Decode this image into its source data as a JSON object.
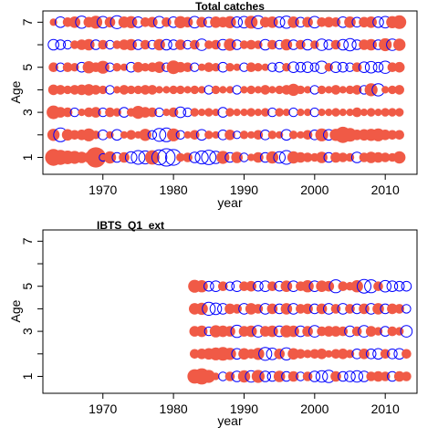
{
  "colors": {
    "positive": "#F05A46",
    "negative": "#0000FF",
    "axis": "#000000",
    "background": "#FFFFFF"
  },
  "chart_data": [
    {
      "type": "bubble",
      "title": "Total catches",
      "xlabel": "year",
      "ylabel": "Age",
      "xlim": [
        1961.5,
        2014.5
      ],
      "ylim": [
        0.25,
        7.5
      ],
      "xticks": [
        1970,
        1980,
        1990,
        2000,
        2010
      ],
      "yticks": [
        1,
        3,
        5,
        7
      ],
      "yminor_ticks": [
        2,
        4,
        6
      ],
      "years": [
        1963,
        2012
      ],
      "ages": [
        1,
        2,
        3,
        4,
        5,
        6,
        7
      ],
      "encoding": "filled red = positive residual, open blue = negative residual; circle size proportional to magnitude",
      "residuals": {
        "1": [
          1.5,
          1.2,
          1.0,
          0.9,
          0.7,
          0.6,
          2.2,
          -0.3,
          0.8,
          -0.5,
          0.6,
          -0.7,
          -1.0,
          -0.9,
          1.1,
          -1.2,
          -1.6,
          -1.3,
          0.4,
          0.5,
          -0.6,
          -0.9,
          -1.1,
          -0.8,
          0.9,
          -0.5,
          0.7,
          -0.4,
          0.3,
          0.6,
          -0.5,
          0.8,
          -0.7,
          -1.0,
          0.8,
          0.6,
          0.5,
          0.4,
          0.7,
          -0.5,
          0.6,
          0.5,
          0.4,
          -0.6,
          0.5,
          0.7,
          0.6,
          0.5,
          0.4,
          0.8
        ],
        "2": [
          0.8,
          -1.0,
          0.7,
          0.5,
          0.6,
          0.9,
          0.4,
          -0.5,
          0.3,
          -0.6,
          0.3,
          0.5,
          0.3,
          0.8,
          -0.4,
          -0.9,
          -1.0,
          0.9,
          -0.4,
          0.3,
          0.5,
          -0.6,
          0.4,
          0.3,
          -0.5,
          0.6,
          -0.3,
          0.4,
          0.3,
          0.5,
          -0.5,
          0.4,
          0.3,
          -0.6,
          0.4,
          0.3,
          0.5,
          -0.5,
          0.9,
          -0.6,
          0.8,
          1.4,
          1.0,
          0.6,
          0.7,
          0.8,
          0.9,
          0.6,
          0.5,
          0.5
        ],
        "3": [
          1.0,
          0.6,
          0.5,
          -0.4,
          0.3,
          0.5,
          0.6,
          -0.4,
          0.5,
          0.4,
          -0.5,
          0.4,
          0.9,
          0.6,
          0.5,
          -0.4,
          0.3,
          0.5,
          -0.6,
          -0.4,
          0.4,
          0.3,
          0.4,
          0.3,
          -0.5,
          0.4,
          0.3,
          0.3,
          0.4,
          0.3,
          0.4,
          -0.4,
          0.4,
          0.3,
          -0.4,
          0.3,
          0.3,
          -0.4,
          0.3,
          0.3,
          0.4,
          0.3,
          0.3,
          0.5,
          0.3,
          0.4,
          0.3,
          0.4,
          0.4,
          0.4
        ],
        "4": [
          0.6,
          0.5,
          0.4,
          0.5,
          0.6,
          0.7,
          0.5,
          0.4,
          -0.4,
          0.3,
          0.5,
          0.4,
          0.4,
          0.5,
          0.5,
          0.3,
          0.3,
          0.4,
          0.4,
          0.3,
          0.4,
          0.3,
          -0.4,
          0.4,
          0.3,
          0.3,
          -0.4,
          0.3,
          0.4,
          0.3,
          0.5,
          0.3,
          0.4,
          0.5,
          0.8,
          0.4,
          0.3,
          -0.4,
          0.4,
          0.3,
          0.5,
          0.3,
          0.4,
          0.5,
          -0.4,
          0.9,
          -0.8,
          0.3,
          0.4,
          0.5
        ],
        "5": [
          0.5,
          -0.4,
          0.5,
          0.4,
          -0.5,
          0.8,
          0.5,
          0.9,
          -0.4,
          0.4,
          0.3,
          -0.5,
          0.6,
          0.4,
          0.5,
          0.7,
          -0.4,
          1.0,
          0.6,
          0.5,
          -0.4,
          0.3,
          0.5,
          0.4,
          -0.5,
          0.4,
          0.3,
          -0.4,
          0.5,
          0.4,
          0.3,
          -0.4,
          -0.5,
          0.4,
          -0.6,
          -0.5,
          -0.6,
          -0.4,
          -0.8,
          0.4,
          -0.6,
          -0.5,
          -0.4,
          0.5,
          -0.6,
          -0.7,
          -0.5,
          -0.8,
          0.5,
          0.6
        ],
        "6": [
          -0.6,
          -0.5,
          -0.4,
          0.4,
          0.6,
          0.7,
          -0.5,
          0.5,
          -0.4,
          0.4,
          0.6,
          0.7,
          -0.5,
          0.5,
          -0.4,
          0.7,
          -0.6,
          -0.5,
          0.6,
          -0.4,
          0.5,
          -0.7,
          0.4,
          0.5,
          -0.6,
          0.8,
          -0.5,
          0.4,
          0.5,
          0.4,
          -0.6,
          0.5,
          -0.4,
          0.7,
          -0.5,
          0.5,
          -0.6,
          0.4,
          -0.7,
          -0.5,
          0.5,
          -0.6,
          -0.8,
          -0.5,
          0.6,
          0.7,
          -0.5,
          0.9,
          -0.7,
          0.8
        ],
        "7": [
          0.3,
          -0.6,
          0.5,
          0.7,
          -0.8,
          0.6,
          0.9,
          -0.7,
          0.6,
          -0.9,
          0.7,
          0.8,
          -0.6,
          0.5,
          0.6,
          -0.7,
          0.5,
          -0.6,
          0.8,
          0.6,
          -0.7,
          0.6,
          -0.5,
          0.7,
          0.6,
          0.8,
          -0.6,
          -0.7,
          0.9,
          -0.9,
          0.6,
          0.7,
          -0.6,
          -0.8,
          0.7,
          -0.5,
          0.6,
          -0.7,
          0.5,
          0.6,
          0.5,
          -0.6,
          0.7,
          -0.5,
          0.6,
          0.7,
          -0.6,
          -0.7,
          0.8,
          1.0
        ]
      }
    },
    {
      "type": "bubble",
      "title": "IBTS_Q1_ext",
      "xlabel": "year",
      "ylabel": "Age",
      "xlim": [
        1961.5,
        2014.5
      ],
      "ylim": [
        0.25,
        7.5
      ],
      "xticks": [
        1970,
        1980,
        1990,
        2000,
        2010
      ],
      "yticks": [
        1,
        3,
        5,
        7
      ],
      "yminor_ticks": [
        2,
        4,
        6
      ],
      "years": [
        1983,
        2013
      ],
      "ages": [
        1,
        2,
        3,
        4,
        5
      ],
      "encoding": "filled red = positive residual, open blue = negative residual; circle size proportional to magnitude",
      "residuals": {
        "1": [
          1.1,
          1.4,
          0.9,
          0.3,
          -0.4,
          0.5,
          -0.6,
          0.8,
          -0.7,
          0.9,
          -0.6,
          -0.5,
          0.7,
          -0.5,
          0.6,
          -0.4,
          0.5,
          -0.6,
          -0.7,
          -0.8,
          0.6,
          -0.5,
          -0.6,
          -0.7,
          -0.6,
          0.5,
          0.6,
          0.5,
          -0.5,
          0.6,
          0.5
        ],
        "2": [
          0.5,
          0.6,
          0.7,
          0.9,
          1.0,
          0.8,
          -0.6,
          0.7,
          0.5,
          0.8,
          -0.9,
          -0.7,
          0.6,
          -0.8,
          0.7,
          0.5,
          0.4,
          0.5,
          0.6,
          0.3,
          0.5,
          0.6,
          0.4,
          -0.5,
          0.6,
          -0.5,
          -0.6,
          0.5,
          -0.5,
          -0.6,
          0.5
        ],
        "3": [
          0.6,
          0.7,
          -0.4,
          0.8,
          0.7,
          0.6,
          -0.8,
          0.6,
          0.7,
          -0.7,
          0.6,
          0.7,
          -0.6,
          0.8,
          0.7,
          -0.6,
          0.6,
          -0.7,
          0.5,
          0.6,
          0.6,
          0.5,
          -0.6,
          0.5,
          -0.7,
          0.6,
          0.4,
          -0.5,
          0.5,
          0.4,
          -0.7
        ],
        "4": [
          0.7,
          0.8,
          -0.9,
          -0.7,
          -0.6,
          0.6,
          0.5,
          -0.6,
          0.7,
          0.5,
          -0.6,
          0.6,
          -0.5,
          0.7,
          -0.6,
          0.5,
          0.6,
          -0.5,
          0.6,
          -0.6,
          0.5,
          -0.6,
          0.5,
          -0.5,
          0.6,
          -0.6,
          0.7,
          -0.5,
          0.6,
          0.5,
          -0.4
        ],
        "5": [
          0.9,
          0.8,
          -0.5,
          -0.6,
          0.5,
          -0.4,
          -0.6,
          0.5,
          0.6,
          -0.5,
          -0.6,
          0.5,
          -0.5,
          0.7,
          -0.6,
          0.5,
          0.8,
          -0.6,
          0.7,
          0.6,
          -0.9,
          0.5,
          0.4,
          0.8,
          -1.0,
          -0.9,
          0.5,
          -0.7,
          -0.6,
          -0.5,
          -0.5
        ]
      }
    }
  ]
}
